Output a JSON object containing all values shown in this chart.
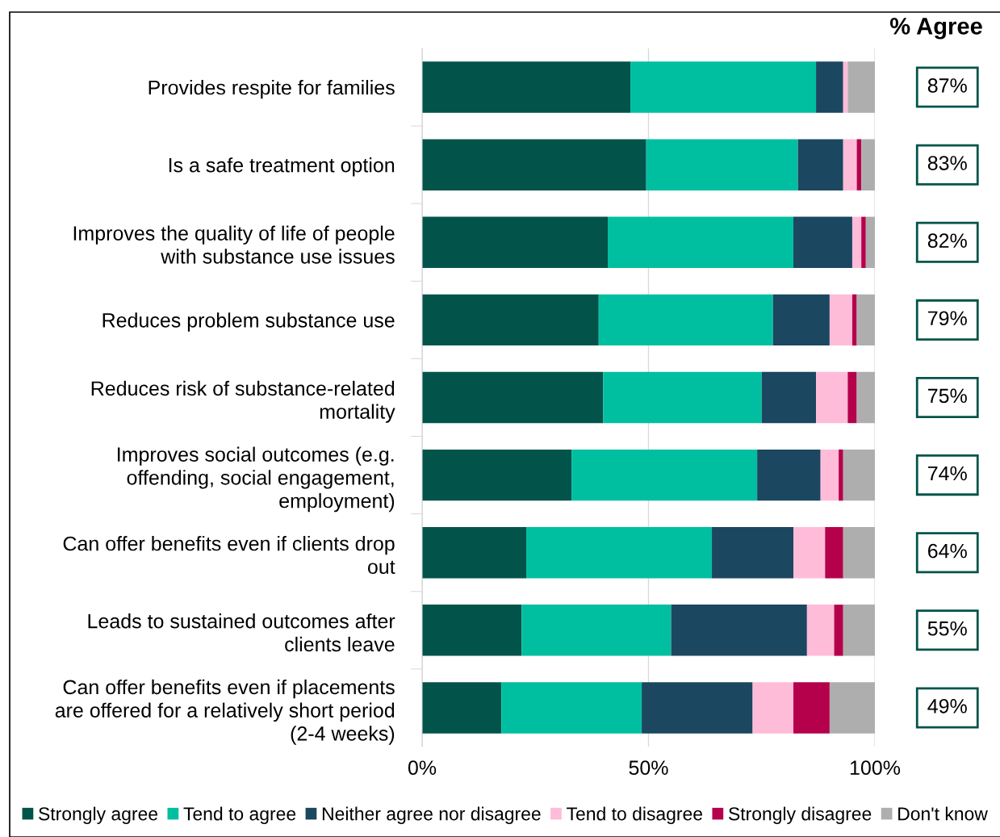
{
  "chart_data": {
    "type": "bar",
    "orientation": "horizontal",
    "stacked": true,
    "categories": [
      "Provides respite for families",
      "Is a safe treatment option",
      "Improves the quality of life of people\nwith substance use issues",
      "Reduces problem substance use",
      "Reduces risk of substance-related\nmortality",
      "Improves social outcomes (e.g.\noffending, social engagement,\nemployment)",
      "Can offer benefits even if clients drop\nout",
      "Leads to sustained outcomes after\nclients leave",
      "Can offer benefits even if placements\nare offered for a relatively short period\n(2-4 weeks)"
    ],
    "series": [
      {
        "name": "Strongly agree",
        "color": "#02544a",
        "values": [
          46,
          49.5,
          41,
          39,
          40,
          33,
          23,
          22,
          17.5
        ]
      },
      {
        "name": "Tend to agree",
        "color": "#00bfa0",
        "values": [
          41,
          33.5,
          41,
          38.5,
          35,
          41,
          41,
          33,
          31
        ]
      },
      {
        "name": "Neither agree nor disagree",
        "color": "#1b4760",
        "values": [
          6,
          10,
          13,
          12.5,
          12,
          14,
          18,
          30,
          24.5
        ]
      },
      {
        "name": "Tend to disagree",
        "color": "#ffbcd9",
        "values": [
          1,
          3,
          2,
          5,
          7,
          4,
          7,
          6,
          9
        ]
      },
      {
        "name": "Strongly disagree",
        "color": "#b5004b",
        "values": [
          0,
          1,
          1,
          1,
          2,
          1,
          4,
          2,
          8
        ]
      },
      {
        "name": "Don't know",
        "color": "#aeaeae",
        "values": [
          6,
          3,
          2,
          4,
          4,
          7,
          7,
          7,
          10
        ]
      }
    ],
    "xlim": [
      0,
      100
    ],
    "xticks": [
      {
        "value": 0,
        "label": "0%"
      },
      {
        "value": 50,
        "label": "50%"
      },
      {
        "value": 100,
        "label": "100%"
      }
    ],
    "grid": "x",
    "legend": "bottom",
    "annotations": [
      "% Agree",
      "87%",
      "83%",
      "82%",
      "79%",
      "75%",
      "74%",
      "64%",
      "55%",
      "49%"
    ]
  }
}
